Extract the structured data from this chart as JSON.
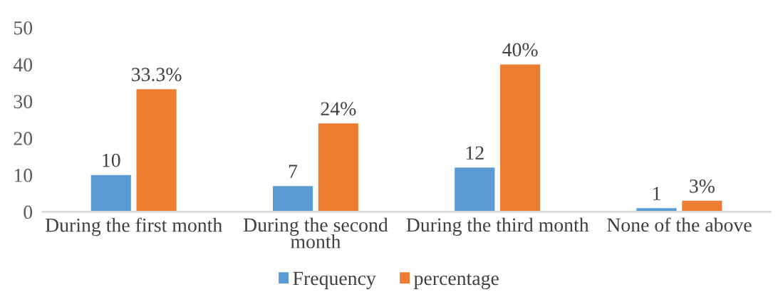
{
  "chart_data": {
    "type": "bar",
    "categories": [
      "During the first month",
      "During the second month",
      "During the third month",
      "None of the above"
    ],
    "series": [
      {
        "name": "Frequency",
        "color": "#5b9bd5",
        "values": [
          10,
          7,
          12,
          1
        ],
        "value_labels": [
          "10",
          "7",
          "12",
          "1"
        ]
      },
      {
        "name": "percentage",
        "color": "#ed7d31",
        "values": [
          33.3,
          24,
          40,
          3
        ],
        "value_labels": [
          "33.3%",
          "24%",
          "40%",
          "3%"
        ]
      }
    ],
    "ylim": [
      0,
      50
    ],
    "yticks": [
      0,
      10,
      20,
      30,
      40,
      50
    ],
    "grid": false,
    "legend": "bottom"
  }
}
